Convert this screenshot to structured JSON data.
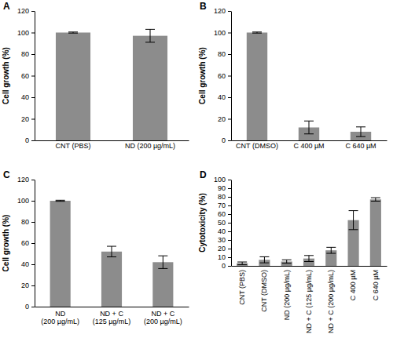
{
  "chart_data": [
    {
      "type": "bar",
      "title": "A",
      "y_label": "Cell growth (%)",
      "categories": [
        "CNT (PBS)",
        "ND (200 µg/mL)"
      ],
      "values": [
        100,
        97
      ],
      "errors": [
        0.5,
        6
      ],
      "color": "#8c8c8c",
      "ylim": [
        0,
        120
      ],
      "yticks": [
        0,
        20,
        40,
        60,
        80,
        100,
        120
      ]
    },
    {
      "type": "bar",
      "title": "B",
      "y_label": "Cell growth (%)",
      "categories": [
        "CNT (DMSO)",
        "C 400 µM",
        "C 640 µM"
      ],
      "values": [
        100,
        12,
        8
      ],
      "errors": [
        0.5,
        6,
        4.5
      ],
      "color": "#8c8c8c",
      "ylim": [
        0,
        120
      ],
      "yticks": [
        0,
        20,
        40,
        60,
        80,
        100,
        120
      ]
    },
    {
      "type": "bar",
      "title": "C",
      "y_label": "Cell growth (%)",
      "categories": [
        "ND\n(200 µg/mL)",
        "ND + C\n(125 µg/mL)",
        "ND + C\n(200 µg/mL)"
      ],
      "values": [
        100,
        52,
        42
      ],
      "errors": [
        0.5,
        5,
        6
      ],
      "color": "#8c8c8c",
      "ylim": [
        0,
        120
      ],
      "yticks": [
        0,
        20,
        40,
        60,
        80,
        100,
        120
      ]
    },
    {
      "type": "bar",
      "title": "D",
      "y_label": "Cytotoxicity (%)",
      "categories": [
        "CNT (PBS)",
        "CNT (DMSO)",
        "ND (200 µg/mL)",
        "ND + C (125 µg/mL)",
        "ND + C (200 µg/mL)",
        "C 400 µM",
        "C 640 µM"
      ],
      "values": [
        3,
        7,
        5,
        8.5,
        18,
        53,
        77
      ],
      "errors": [
        1.5,
        3.5,
        2,
        3.5,
        3.5,
        11,
        2
      ],
      "color": "#8c8c8c",
      "ylim": [
        0,
        100
      ],
      "yticks": [
        0,
        10,
        20,
        30,
        40,
        50,
        60,
        70,
        80,
        90,
        100
      ]
    }
  ]
}
